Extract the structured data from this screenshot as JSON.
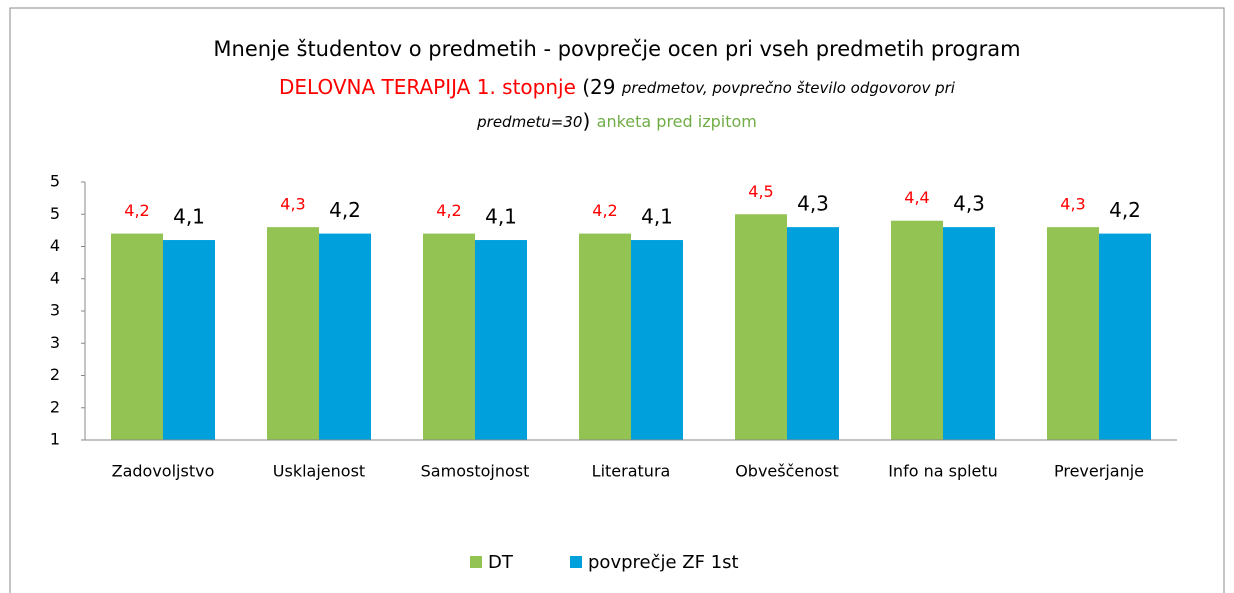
{
  "chart_data": {
    "type": "bar",
    "title": {
      "line1": "Mnenje študentov o predmetih - povprečje ocen pri vseh predmetih program",
      "program": "DELOVNA TERAPIJA 1. stopnje",
      "open": "(29",
      "note1": "predmetov, povprečno število odgovorov pri",
      "note2": "predmetu=30",
      "close": ")",
      "survey": "anketa pred izpitom"
    },
    "categories": [
      "Zadovoljstvo",
      "Usklajenost",
      "Samostojnost",
      "Literatura",
      "Obveščenost",
      "Info na spletu",
      "Preverjanje"
    ],
    "series": [
      {
        "name": "DT",
        "color": "#92c353",
        "label_color": "#ff0000",
        "values": [
          4.2,
          4.3,
          4.2,
          4.2,
          4.5,
          4.4,
          4.3
        ],
        "value_labels": [
          "4,2",
          "4,3",
          "4,2",
          "4,2",
          "4,5",
          "4,4",
          "4,3"
        ]
      },
      {
        "name": "povprečje ZF 1st",
        "color": "#00a0dc",
        "label_color": "#000000",
        "values": [
          4.1,
          4.2,
          4.1,
          4.1,
          4.3,
          4.3,
          4.2
        ],
        "value_labels": [
          "4,1",
          "4,2",
          "4,1",
          "4,1",
          "4,3",
          "4,3",
          "4,2"
        ]
      }
    ],
    "ylim": [
      1,
      5
    ],
    "yticks": [
      1,
      {
        "value": 1.5,
        "label": "2"
      },
      2,
      {
        "value": 2.5,
        "label": "3"
      },
      3,
      {
        "value": 3.5,
        "label": "4"
      },
      4,
      {
        "value": 4.5,
        "label": "5"
      },
      5
    ],
    "legend": "bottom"
  }
}
